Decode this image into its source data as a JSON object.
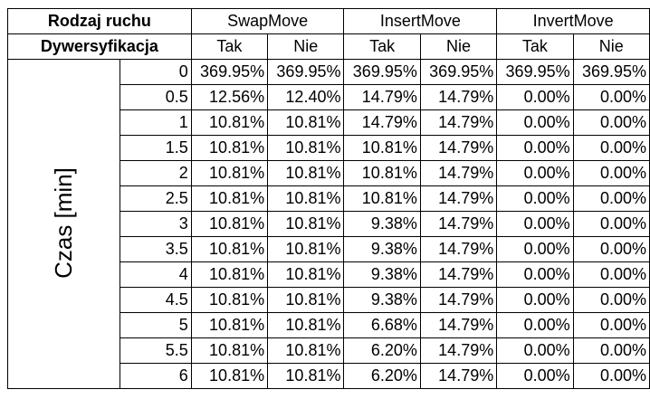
{
  "header": {
    "move_type_label": "Rodzaj ruchu",
    "diversification_label": "Dywersyfikacja",
    "groups": [
      "SwapMove",
      "InsertMove",
      "InvertMove"
    ],
    "sub_labels": [
      "Tak",
      "Nie",
      "Tak",
      "Nie",
      "Tak",
      "Nie"
    ]
  },
  "axis_label": "Czas [min]",
  "rows": [
    {
      "time": "0",
      "values": [
        "369.95%",
        "369.95%",
        "369.95%",
        "369.95%",
        "369.95%",
        "369.95%"
      ]
    },
    {
      "time": "0.5",
      "values": [
        "12.56%",
        "12.40%",
        "14.79%",
        "14.79%",
        "0.00%",
        "0.00%"
      ]
    },
    {
      "time": "1",
      "values": [
        "10.81%",
        "10.81%",
        "14.79%",
        "14.79%",
        "0.00%",
        "0.00%"
      ]
    },
    {
      "time": "1.5",
      "values": [
        "10.81%",
        "10.81%",
        "10.81%",
        "14.79%",
        "0.00%",
        "0.00%"
      ]
    },
    {
      "time": "2",
      "values": [
        "10.81%",
        "10.81%",
        "10.81%",
        "14.79%",
        "0.00%",
        "0.00%"
      ]
    },
    {
      "time": "2.5",
      "values": [
        "10.81%",
        "10.81%",
        "10.81%",
        "14.79%",
        "0.00%",
        "0.00%"
      ]
    },
    {
      "time": "3",
      "values": [
        "10.81%",
        "10.81%",
        "9.38%",
        "14.79%",
        "0.00%",
        "0.00%"
      ]
    },
    {
      "time": "3.5",
      "values": [
        "10.81%",
        "10.81%",
        "9.38%",
        "14.79%",
        "0.00%",
        "0.00%"
      ]
    },
    {
      "time": "4",
      "values": [
        "10.81%",
        "10.81%",
        "9.38%",
        "14.79%",
        "0.00%",
        "0.00%"
      ]
    },
    {
      "time": "4.5",
      "values": [
        "10.81%",
        "10.81%",
        "9.38%",
        "14.79%",
        "0.00%",
        "0.00%"
      ]
    },
    {
      "time": "5",
      "values": [
        "10.81%",
        "10.81%",
        "6.68%",
        "14.79%",
        "0.00%",
        "0.00%"
      ]
    },
    {
      "time": "5.5",
      "values": [
        "10.81%",
        "10.81%",
        "6.20%",
        "14.79%",
        "0.00%",
        "0.00%"
      ]
    },
    {
      "time": "6",
      "values": [
        "10.81%",
        "10.81%",
        "6.20%",
        "14.79%",
        "0.00%",
        "0.00%"
      ]
    }
  ]
}
